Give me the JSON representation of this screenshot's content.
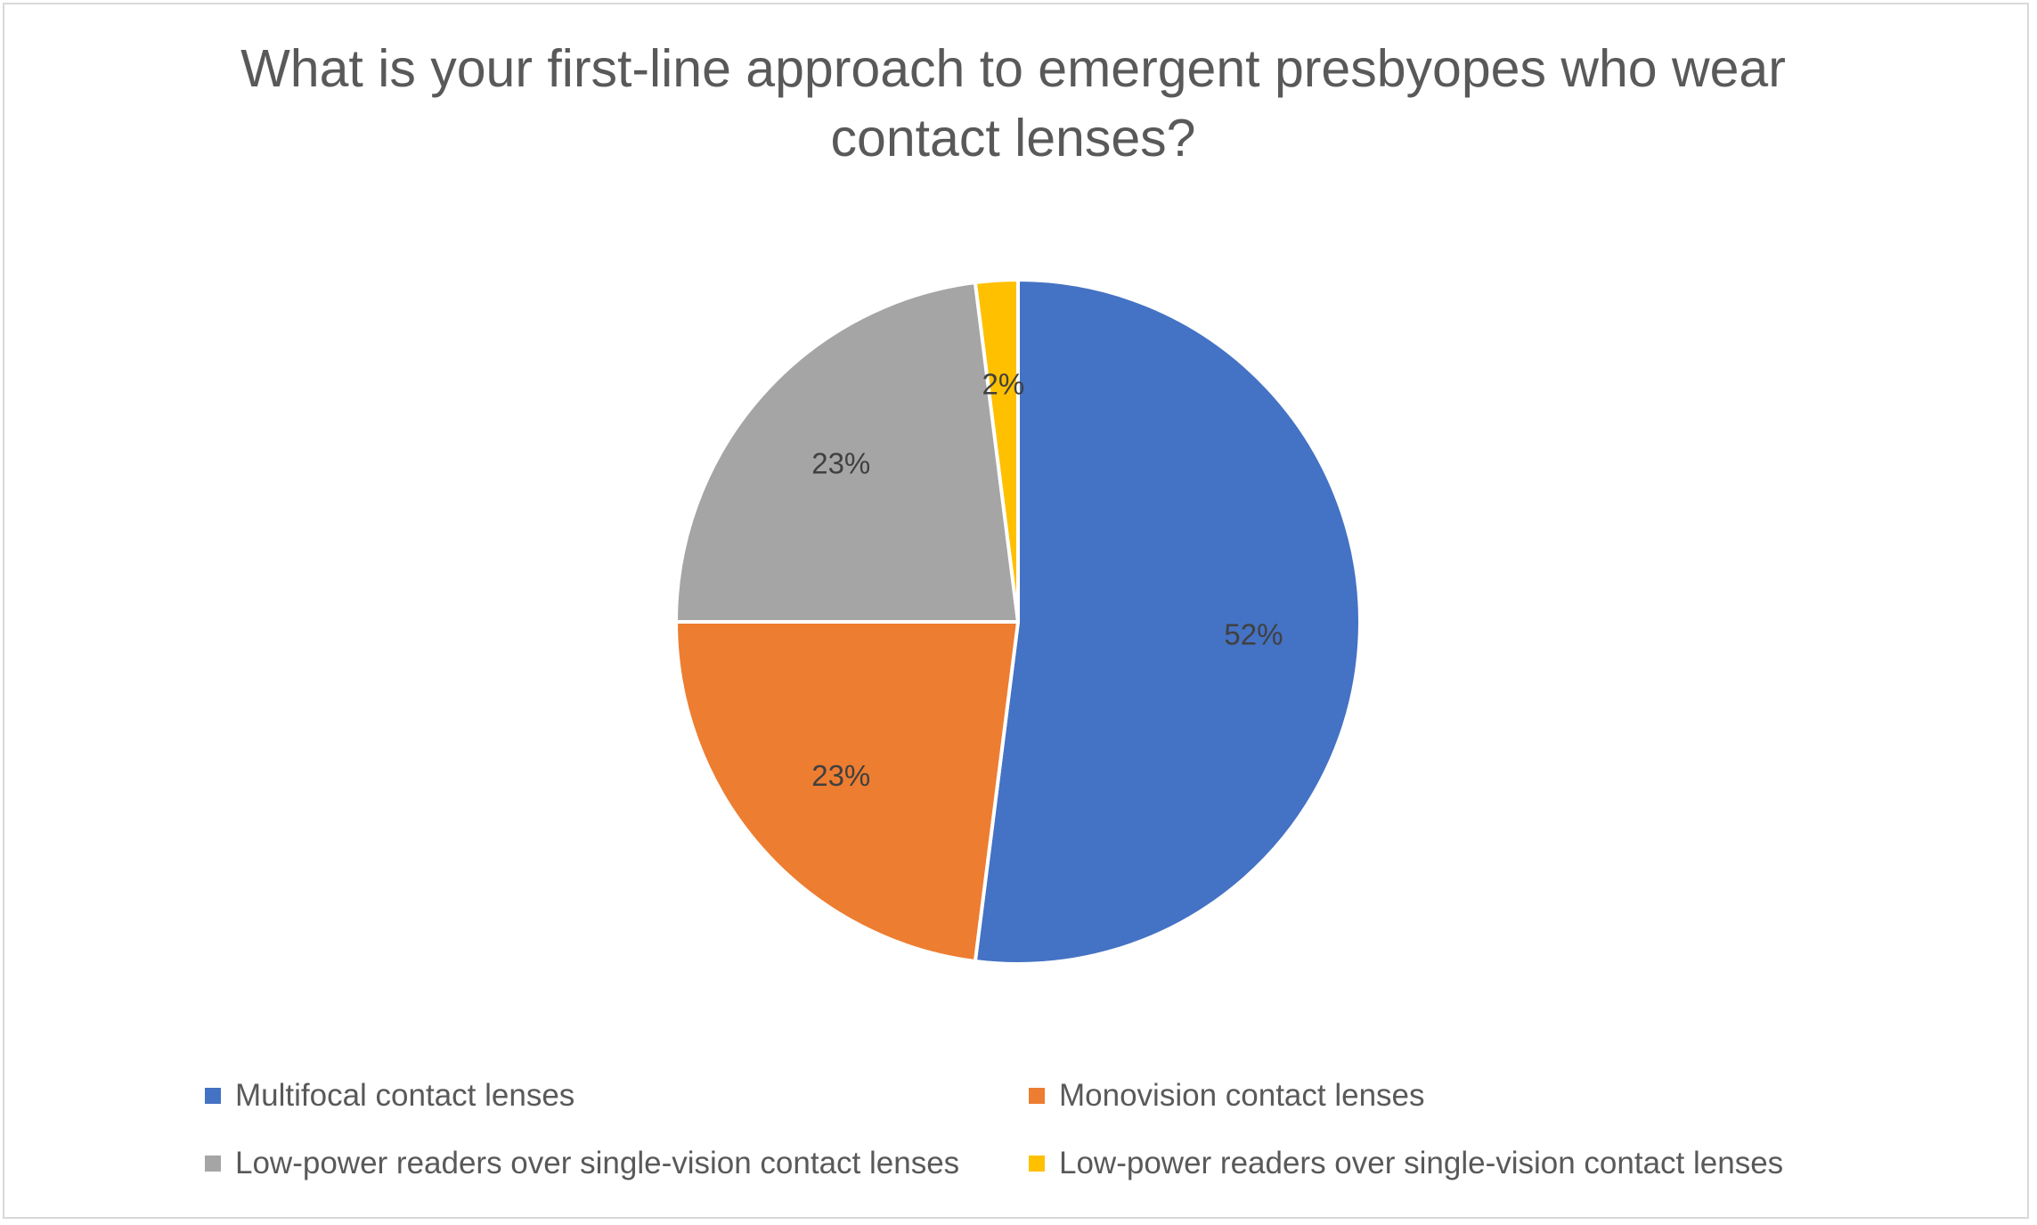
{
  "chart_data": {
    "type": "pie",
    "title": "What is your first-line approach to emergent presbyopes who wear contact lenses?",
    "title_lines": [
      "What is your first-line approach to emergent presbyopes who wear",
      "contact lenses?"
    ],
    "categories": [
      "Multifocal contact lenses",
      "Monovision contact lenses",
      "Low-power readers over single-vision contact lenses",
      "Low-power readers over single-vision contact lenses"
    ],
    "values": [
      52,
      23,
      23,
      2
    ],
    "data_labels": [
      "52%",
      "23%",
      "23%",
      "2%"
    ],
    "colors": [
      "#4472C4",
      "#ED7D31",
      "#A5A5A5",
      "#FFC000"
    ],
    "legend_position": "bottom",
    "start_angle_deg": 0,
    "direction": "clockwise"
  }
}
